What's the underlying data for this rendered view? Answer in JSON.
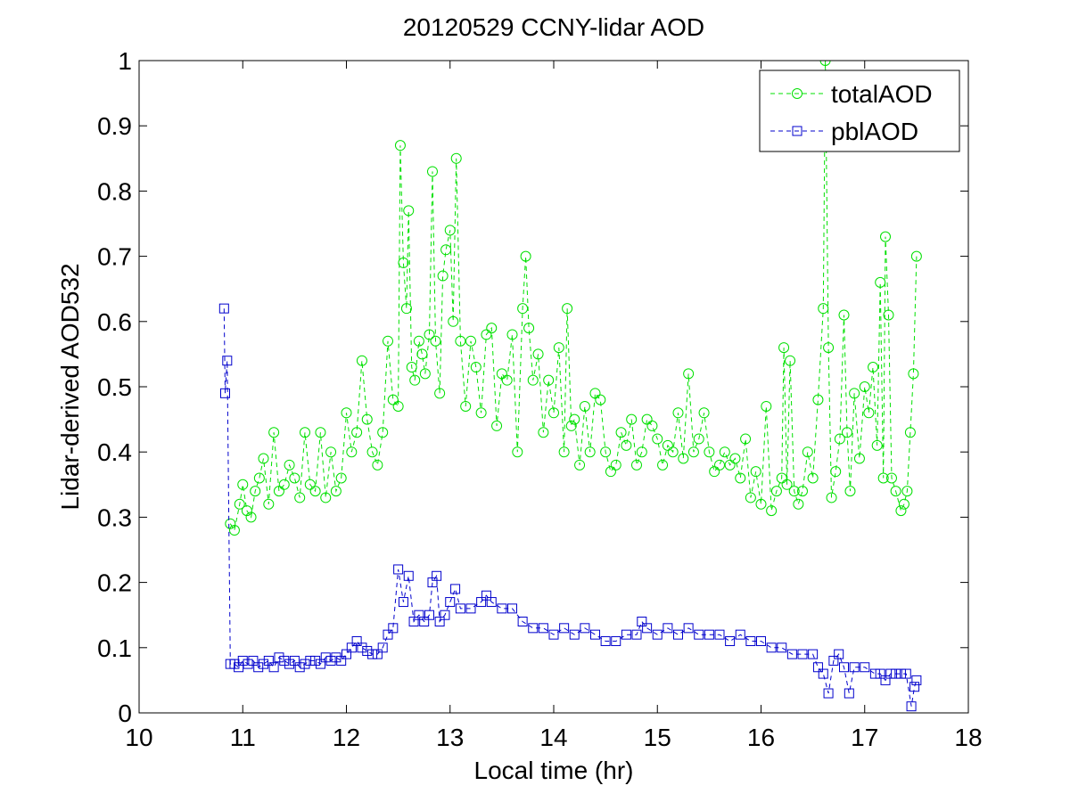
{
  "chart_data": {
    "type": "line",
    "title": "20120529 CCNY-lidar AOD",
    "xlabel": "Local time (hr)",
    "ylabel": "Lidar-derived AOD532",
    "xlim": [
      10,
      18
    ],
    "ylim": [
      0,
      1
    ],
    "xticks": [
      10,
      11,
      12,
      13,
      14,
      15,
      16,
      17,
      18
    ],
    "yticks": [
      0,
      0.1,
      0.2,
      0.3,
      0.4,
      0.5,
      0.6,
      0.7,
      0.8,
      0.9,
      1
    ],
    "xtick_labels": [
      "10",
      "11",
      "12",
      "13",
      "14",
      "15",
      "16",
      "17",
      "18"
    ],
    "ytick_labels": [
      "0",
      "0.1",
      "0.2",
      "0.3",
      "0.4",
      "0.5",
      "0.6",
      "0.7",
      "0.8",
      "0.9",
      "1"
    ],
    "legend_position": "top-right",
    "series": [
      {
        "name": "totalAOD",
        "color": "#00e000",
        "marker": "circle",
        "line_style": "dashed",
        "x": [
          10.88,
          10.92,
          10.97,
          11.0,
          11.04,
          11.08,
          11.12,
          11.16,
          11.2,
          11.25,
          11.3,
          11.35,
          11.4,
          11.45,
          11.5,
          11.55,
          11.6,
          11.65,
          11.7,
          11.75,
          11.8,
          11.85,
          11.9,
          11.95,
          12.0,
          12.05,
          12.1,
          12.15,
          12.2,
          12.25,
          12.3,
          12.35,
          12.4,
          12.45,
          12.5,
          12.52,
          12.55,
          12.58,
          12.6,
          12.63,
          12.66,
          12.7,
          12.73,
          12.76,
          12.8,
          12.83,
          12.86,
          12.9,
          12.93,
          12.96,
          13.0,
          13.03,
          13.06,
          13.1,
          13.15,
          13.2,
          13.25,
          13.3,
          13.35,
          13.4,
          13.45,
          13.5,
          13.55,
          13.6,
          13.65,
          13.7,
          13.73,
          13.76,
          13.8,
          13.85,
          13.9,
          13.95,
          14.0,
          14.05,
          14.1,
          14.13,
          14.17,
          14.2,
          14.25,
          14.3,
          14.35,
          14.4,
          14.45,
          14.5,
          14.55,
          14.6,
          14.65,
          14.7,
          14.75,
          14.8,
          14.85,
          14.9,
          14.95,
          15.0,
          15.05,
          15.1,
          15.15,
          15.2,
          15.25,
          15.3,
          15.35,
          15.4,
          15.45,
          15.5,
          15.55,
          15.6,
          15.65,
          15.7,
          15.75,
          15.8,
          15.85,
          15.9,
          15.95,
          16.0,
          16.05,
          16.1,
          16.15,
          16.2,
          16.22,
          16.25,
          16.28,
          16.32,
          16.36,
          16.4,
          16.45,
          16.5,
          16.55,
          16.6,
          16.62,
          16.65,
          16.68,
          16.72,
          16.76,
          16.8,
          16.83,
          16.86,
          16.9,
          16.95,
          17.0,
          17.04,
          17.08,
          17.12,
          17.15,
          17.18,
          17.2,
          17.23,
          17.26,
          17.3,
          17.35,
          17.38,
          17.41,
          17.44,
          17.47,
          17.5
        ],
        "values": [
          0.29,
          0.28,
          0.32,
          0.35,
          0.31,
          0.3,
          0.34,
          0.36,
          0.39,
          0.32,
          0.43,
          0.34,
          0.35,
          0.38,
          0.36,
          0.33,
          0.43,
          0.35,
          0.34,
          0.43,
          0.33,
          0.4,
          0.34,
          0.36,
          0.46,
          0.4,
          0.43,
          0.54,
          0.45,
          0.4,
          0.38,
          0.43,
          0.57,
          0.48,
          0.47,
          0.87,
          0.69,
          0.62,
          0.77,
          0.53,
          0.51,
          0.57,
          0.55,
          0.52,
          0.58,
          0.83,
          0.57,
          0.49,
          0.67,
          0.71,
          0.74,
          0.6,
          0.85,
          0.57,
          0.47,
          0.57,
          0.53,
          0.46,
          0.58,
          0.59,
          0.44,
          0.52,
          0.51,
          0.58,
          0.4,
          0.62,
          0.7,
          0.59,
          0.51,
          0.55,
          0.43,
          0.51,
          0.46,
          0.56,
          0.4,
          0.62,
          0.44,
          0.45,
          0.38,
          0.47,
          0.4,
          0.49,
          0.48,
          0.4,
          0.37,
          0.38,
          0.43,
          0.41,
          0.45,
          0.38,
          0.4,
          0.45,
          0.44,
          0.42,
          0.38,
          0.41,
          0.4,
          0.46,
          0.39,
          0.52,
          0.4,
          0.42,
          0.46,
          0.4,
          0.37,
          0.38,
          0.4,
          0.38,
          0.39,
          0.36,
          0.42,
          0.33,
          0.37,
          0.32,
          0.47,
          0.31,
          0.34,
          0.36,
          0.56,
          0.35,
          0.54,
          0.34,
          0.32,
          0.34,
          0.4,
          0.36,
          0.48,
          0.62,
          1.0,
          0.56,
          0.33,
          0.37,
          0.42,
          0.61,
          0.43,
          0.34,
          0.49,
          0.39,
          0.5,
          0.46,
          0.53,
          0.41,
          0.66,
          0.36,
          0.73,
          0.61,
          0.36,
          0.34,
          0.31,
          0.32,
          0.34,
          0.43,
          0.52,
          0.7
        ]
      },
      {
        "name": "pblAOD",
        "color": "#0000cc",
        "marker": "square",
        "line_style": "dashed",
        "x": [
          10.82,
          10.83,
          10.85,
          10.88,
          10.92,
          10.96,
          11.0,
          11.05,
          11.1,
          11.15,
          11.2,
          11.25,
          11.3,
          11.35,
          11.4,
          11.45,
          11.5,
          11.55,
          11.6,
          11.65,
          11.7,
          11.75,
          11.8,
          11.85,
          11.9,
          11.95,
          12.0,
          12.05,
          12.1,
          12.15,
          12.2,
          12.25,
          12.3,
          12.35,
          12.4,
          12.45,
          12.5,
          12.55,
          12.6,
          12.65,
          12.7,
          12.75,
          12.8,
          12.83,
          12.87,
          12.9,
          12.95,
          13.0,
          13.05,
          13.1,
          13.2,
          13.3,
          13.35,
          13.4,
          13.5,
          13.6,
          13.7,
          13.8,
          13.9,
          14.0,
          14.1,
          14.2,
          14.3,
          14.4,
          14.5,
          14.6,
          14.7,
          14.8,
          14.85,
          14.9,
          15.0,
          15.1,
          15.2,
          15.3,
          15.4,
          15.5,
          15.6,
          15.7,
          15.8,
          15.9,
          16.0,
          16.1,
          16.2,
          16.3,
          16.4,
          16.5,
          16.55,
          16.6,
          16.65,
          16.7,
          16.75,
          16.8,
          16.85,
          16.9,
          17.0,
          17.1,
          17.15,
          17.2,
          17.25,
          17.3,
          17.35,
          17.4,
          17.45,
          17.48,
          17.5
        ],
        "values": [
          0.62,
          0.49,
          0.54,
          0.075,
          0.075,
          0.07,
          0.08,
          0.075,
          0.08,
          0.07,
          0.075,
          0.08,
          0.07,
          0.085,
          0.08,
          0.075,
          0.08,
          0.07,
          0.075,
          0.08,
          0.08,
          0.075,
          0.085,
          0.08,
          0.085,
          0.08,
          0.09,
          0.1,
          0.11,
          0.1,
          0.095,
          0.09,
          0.09,
          0.1,
          0.12,
          0.13,
          0.22,
          0.17,
          0.21,
          0.14,
          0.15,
          0.14,
          0.15,
          0.2,
          0.21,
          0.14,
          0.15,
          0.17,
          0.19,
          0.16,
          0.16,
          0.17,
          0.18,
          0.17,
          0.16,
          0.16,
          0.14,
          0.13,
          0.13,
          0.12,
          0.13,
          0.12,
          0.13,
          0.12,
          0.11,
          0.11,
          0.12,
          0.12,
          0.14,
          0.13,
          0.12,
          0.13,
          0.12,
          0.13,
          0.12,
          0.12,
          0.12,
          0.11,
          0.12,
          0.11,
          0.11,
          0.1,
          0.1,
          0.09,
          0.09,
          0.09,
          0.07,
          0.06,
          0.03,
          0.08,
          0.09,
          0.07,
          0.03,
          0.07,
          0.07,
          0.06,
          0.06,
          0.05,
          0.06,
          0.06,
          0.06,
          0.06,
          0.01,
          0.04,
          0.05
        ]
      }
    ]
  }
}
